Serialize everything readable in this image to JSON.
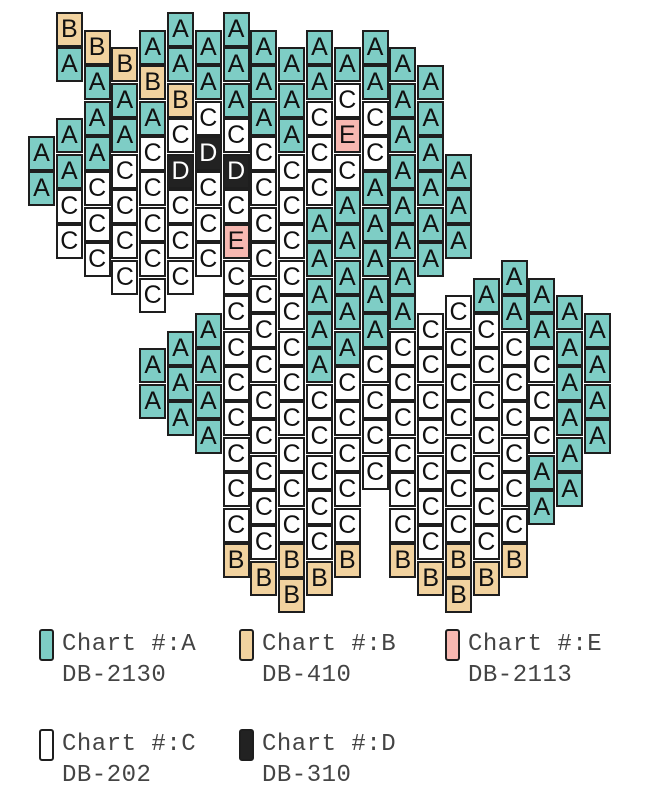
{
  "pattern": {
    "colors": {
      "A": "#7ecdc5",
      "B": "#f1d29f",
      "C": "#ffffff",
      "D": "#222222",
      "E": "#f7b8b1"
    },
    "text_colors": {
      "A": "#111111",
      "B": "#111111",
      "C": "#111111",
      "D": "#ffffff",
      "E": "#111111"
    },
    "columns": [
      {
        "start": 7,
        "beads": "AA"
      },
      {
        "start": 0,
        "beads": "BA AACC"
      },
      {
        "start": 1,
        "beads": "BAAACCC"
      },
      {
        "start": 2,
        "beads": "BAACCCC"
      },
      {
        "start": 1,
        "beads": "ABACCCCC AA"
      },
      {
        "start": 0,
        "beads": "AABCDCCC AAA"
      },
      {
        "start": 1,
        "beads": "AACDCCC AAAA"
      },
      {
        "start": 0,
        "beads": "AAACDCECCCCCCCCB"
      },
      {
        "start": 1,
        "beads": "AAACCCCCCCCCCCCB"
      },
      {
        "start": 2,
        "beads": "AAACCCCCCCCCCCBB"
      },
      {
        "start": 1,
        "beads": "AACCCAAAAACCCCCB"
      },
      {
        "start": 2,
        "beads": "ACECAAAAACCCCCB"
      },
      {
        "start": 1,
        "beads": "AACCAAAAACCCC"
      },
      {
        "start": 2,
        "beads": "AAAAAAAACCCCCCB"
      },
      {
        "start": 3,
        "beads": "AAAAAA CCCCCCCB"
      },
      {
        "start": 8,
        "beads": "AAA CCCCCCCBB"
      },
      {
        "start": 15,
        "beads": "ACCCCCCCB"
      },
      {
        "start": 14,
        "beads": "AACCCCCCB"
      },
      {
        "start": 15,
        "beads": "AACCCAA"
      },
      {
        "start": 16,
        "beads": "AAAAAA"
      },
      {
        "start": 17,
        "beads": "AAAA"
      }
    ]
  },
  "legend": {
    "items": [
      {
        "key": "A",
        "label": "Chart #:A",
        "code": "DB-2130",
        "color": "#7ecdc5"
      },
      {
        "key": "B",
        "label": "Chart #:B",
        "code": "DB-410",
        "color": "#f1d29f"
      },
      {
        "key": "E",
        "label": "Chart #:E",
        "code": "DB-2113",
        "color": "#f7b8b1"
      },
      {
        "key": "C",
        "label": "Chart #:C",
        "code": "DB-202",
        "color": "#ffffff"
      },
      {
        "key": "D",
        "label": "Chart #:D",
        "code": "DB-310",
        "color": "#222222"
      }
    ]
  }
}
